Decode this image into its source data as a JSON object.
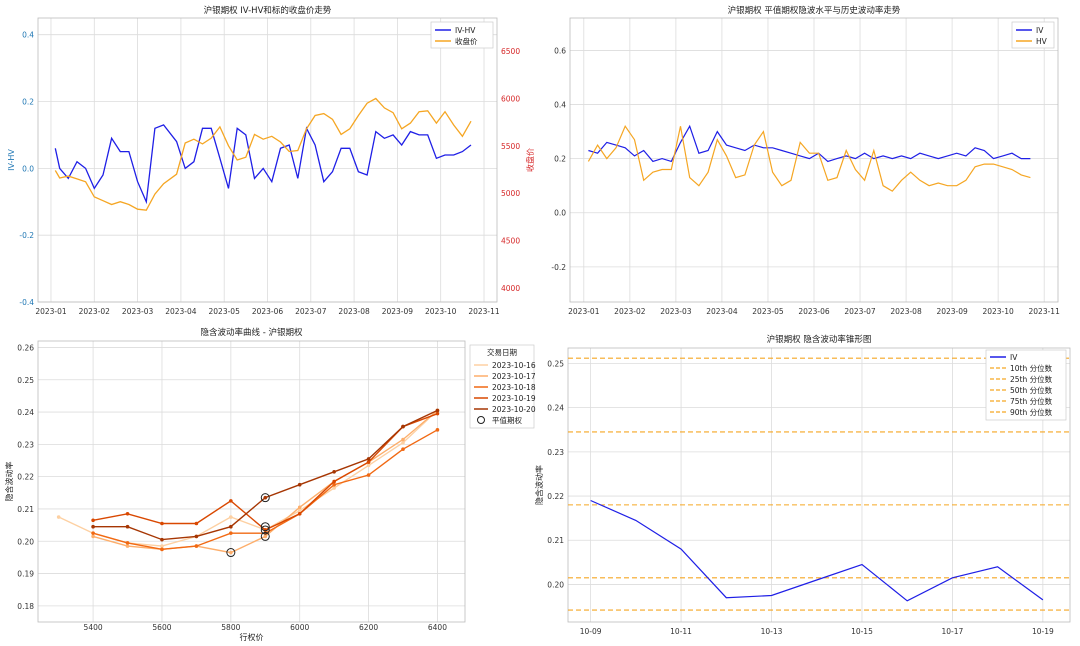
{
  "colors": {
    "iv": "#1f1fe6",
    "hv": "#f5a623",
    "close": "#f5a623",
    "red": "#d62728",
    "blue": "#1f77b4",
    "pct": "#f5a623"
  },
  "chart_data": [
    {
      "id": "c1",
      "type": "line",
      "title": "沪银期权 IV-HV和标的收盘价走势",
      "ylabel": "IV-HV",
      "y2label": "收盘价",
      "ylim": [
        -0.4,
        0.45
      ],
      "y2lim": [
        3850,
        6850
      ],
      "xlim": [
        -0.3,
        10.3
      ],
      "yticks": [
        -0.4,
        -0.2,
        0.0,
        0.2,
        0.4
      ],
      "y2ticks": [
        4000,
        4500,
        5000,
        5500,
        6000,
        6500
      ],
      "xticks": [
        "2023-01",
        "2023-02",
        "2023-03",
        "2023-04",
        "2023-05",
        "2023-06",
        "2023-07",
        "2023-08",
        "2023-09",
        "2023-10",
        "2023-11"
      ],
      "legend": "top-right",
      "series": [
        {
          "name": "IV-HV",
          "axis": "left",
          "x": [
            0.1,
            0.2,
            0.4,
            0.6,
            0.8,
            1.0,
            1.2,
            1.4,
            1.6,
            1.8,
            2.0,
            2.2,
            2.4,
            2.6,
            2.9,
            3.1,
            3.3,
            3.5,
            3.7,
            3.9,
            4.1,
            4.3,
            4.5,
            4.7,
            4.9,
            5.1,
            5.3,
            5.5,
            5.7,
            5.9,
            6.1,
            6.3,
            6.5,
            6.7,
            6.9,
            7.1,
            7.3,
            7.5,
            7.7,
            7.9,
            8.1,
            8.3,
            8.5,
            8.7,
            8.9,
            9.1,
            9.3,
            9.5,
            9.7
          ],
          "values": [
            0.06,
            0.0,
            -0.03,
            0.02,
            0.0,
            -0.06,
            -0.02,
            0.09,
            0.05,
            0.05,
            -0.04,
            -0.1,
            0.12,
            0.13,
            0.08,
            0.0,
            0.02,
            0.12,
            0.12,
            0.03,
            -0.06,
            0.12,
            0.1,
            -0.03,
            0.0,
            -0.04,
            0.06,
            0.07,
            -0.03,
            0.12,
            0.07,
            -0.04,
            -0.01,
            0.06,
            0.06,
            -0.01,
            -0.02,
            0.11,
            0.09,
            0.1,
            0.07,
            0.11,
            0.1,
            0.1,
            0.03,
            0.04,
            0.04,
            0.05,
            0.07
          ]
        },
        {
          "name": "收盘价",
          "axis": "right",
          "x": [
            0.1,
            0.2,
            0.4,
            0.6,
            0.8,
            1.0,
            1.2,
            1.4,
            1.6,
            1.8,
            2.0,
            2.2,
            2.4,
            2.6,
            2.9,
            3.1,
            3.3,
            3.5,
            3.7,
            3.9,
            4.1,
            4.3,
            4.5,
            4.7,
            4.9,
            5.1,
            5.3,
            5.5,
            5.7,
            5.9,
            6.1,
            6.3,
            6.5,
            6.7,
            6.9,
            7.1,
            7.3,
            7.5,
            7.7,
            7.9,
            8.1,
            8.3,
            8.5,
            8.7,
            8.9,
            9.1,
            9.3,
            9.5,
            9.7
          ],
          "values": [
            5240,
            5160,
            5180,
            5150,
            5120,
            4960,
            4920,
            4880,
            4910,
            4880,
            4830,
            4820,
            4990,
            5100,
            5200,
            5530,
            5570,
            5520,
            5580,
            5700,
            5500,
            5350,
            5380,
            5620,
            5570,
            5600,
            5540,
            5440,
            5450,
            5680,
            5820,
            5840,
            5780,
            5620,
            5680,
            5820,
            5950,
            6000,
            5900,
            5850,
            5680,
            5740,
            5860,
            5870,
            5740,
            5860,
            5720,
            5600,
            5760
          ]
        }
      ]
    },
    {
      "id": "c2",
      "type": "line",
      "title": "沪银期权 平值期权隐波水平与历史波动率走势",
      "ylim": [
        -0.33,
        0.72
      ],
      "xlim": [
        -0.3,
        10.3
      ],
      "yticks": [
        -0.2,
        0.0,
        0.2,
        0.4,
        0.6
      ],
      "xticks": [
        "2023-01",
        "2023-02",
        "2023-03",
        "2023-04",
        "2023-05",
        "2023-06",
        "2023-07",
        "2023-08",
        "2023-09",
        "2023-10",
        "2023-11"
      ],
      "legend": "top-right",
      "series": [
        {
          "name": "IV",
          "x": [
            0.1,
            0.3,
            0.5,
            0.7,
            0.9,
            1.1,
            1.3,
            1.5,
            1.7,
            1.9,
            2.1,
            2.3,
            2.5,
            2.7,
            2.9,
            3.1,
            3.3,
            3.5,
            3.7,
            3.9,
            4.1,
            4.3,
            4.5,
            4.7,
            4.9,
            5.1,
            5.3,
            5.5,
            5.7,
            5.9,
            6.1,
            6.3,
            6.5,
            6.7,
            6.9,
            7.1,
            7.3,
            7.5,
            7.7,
            7.9,
            8.1,
            8.3,
            8.5,
            8.7,
            8.9,
            9.1,
            9.3,
            9.5,
            9.7
          ],
          "values": [
            0.23,
            0.22,
            0.26,
            0.25,
            0.24,
            0.21,
            0.23,
            0.19,
            0.2,
            0.19,
            0.26,
            0.32,
            0.22,
            0.23,
            0.3,
            0.25,
            0.24,
            0.23,
            0.25,
            0.24,
            0.24,
            0.23,
            0.22,
            0.21,
            0.2,
            0.22,
            0.19,
            0.2,
            0.21,
            0.2,
            0.22,
            0.2,
            0.21,
            0.2,
            0.21,
            0.2,
            0.22,
            0.21,
            0.2,
            0.21,
            0.22,
            0.21,
            0.24,
            0.23,
            0.2,
            0.21,
            0.22,
            0.2,
            0.2
          ]
        },
        {
          "name": "HV",
          "x": [
            0.1,
            0.3,
            0.5,
            0.7,
            0.9,
            1.1,
            1.3,
            1.5,
            1.7,
            1.9,
            2.1,
            2.3,
            2.5,
            2.7,
            2.9,
            3.1,
            3.3,
            3.5,
            3.7,
            3.9,
            4.1,
            4.3,
            4.5,
            4.7,
            4.9,
            5.1,
            5.3,
            5.5,
            5.7,
            5.9,
            6.1,
            6.3,
            6.5,
            6.7,
            6.9,
            7.1,
            7.3,
            7.5,
            7.7,
            7.9,
            8.1,
            8.3,
            8.5,
            8.7,
            8.9,
            9.1,
            9.3,
            9.5,
            9.7
          ],
          "values": [
            0.19,
            0.25,
            0.2,
            0.24,
            0.32,
            0.27,
            0.12,
            0.15,
            0.16,
            0.16,
            0.32,
            0.13,
            0.1,
            0.15,
            0.27,
            0.21,
            0.13,
            0.14,
            0.25,
            0.3,
            0.15,
            0.1,
            0.12,
            0.26,
            0.22,
            0.22,
            0.12,
            0.13,
            0.23,
            0.16,
            0.12,
            0.23,
            0.1,
            0.08,
            0.12,
            0.15,
            0.12,
            0.1,
            0.11,
            0.1,
            0.1,
            0.12,
            0.17,
            0.18,
            0.18,
            0.17,
            0.16,
            0.14,
            0.13
          ]
        }
      ]
    },
    {
      "id": "c3",
      "type": "line",
      "title": "隐含波动率曲线 - 沪银期权",
      "xlabel": "行权价",
      "ylabel": "隐含波动率",
      "xlim": [
        5240,
        6480
      ],
      "ylim": [
        0.175,
        0.262
      ],
      "xticks": [
        5400,
        5600,
        5800,
        6000,
        6200,
        6400
      ],
      "yticks": [
        0.18,
        0.19,
        0.2,
        0.21,
        0.22,
        0.23,
        0.24,
        0.25,
        0.26
      ],
      "legend_title": "交易日期",
      "legend": "top-right",
      "atm_label": "平值期权",
      "series": [
        {
          "name": "2023-10-16",
          "color": "#fdd0a2",
          "x": [
            5300,
            5400,
            5500,
            5600,
            5700,
            5800,
            5900,
            6000,
            6100,
            6200,
            6300,
            6400
          ],
          "values": [
            0.2075,
            0.2025,
            0.1995,
            0.1985,
            0.2015,
            0.2075,
            0.2035,
            0.2095,
            0.2165,
            0.2235,
            0.2305,
            0.2405
          ]
        },
        {
          "name": "2023-10-17",
          "color": "#fdae6b",
          "x": [
            5400,
            5500,
            5600,
            5700,
            5800,
            5900,
            6000,
            6100,
            6200,
            6300,
            6400
          ],
          "values": [
            0.2015,
            0.1985,
            0.1975,
            0.1985,
            0.1965,
            0.2015,
            0.2105,
            0.2185,
            0.2245,
            0.2315,
            0.2405
          ]
        },
        {
          "name": "2023-10-18",
          "color": "#f16913",
          "x": [
            5400,
            5500,
            5600,
            5700,
            5800,
            5900,
            6000,
            6100,
            6200,
            6300,
            6400
          ],
          "values": [
            0.2025,
            0.1995,
            0.1975,
            0.1985,
            0.2025,
            0.2025,
            0.2085,
            0.2175,
            0.2205,
            0.2285,
            0.2345
          ]
        },
        {
          "name": "2023-10-19",
          "color": "#d94801",
          "x": [
            5400,
            5500,
            5600,
            5700,
            5800,
            5900,
            6000,
            6100,
            6200,
            6300,
            6400
          ],
          "values": [
            0.2065,
            0.2085,
            0.2055,
            0.2055,
            0.2125,
            0.2035,
            0.2085,
            0.2185,
            0.2245,
            0.2355,
            0.2395
          ]
        },
        {
          "name": "2023-10-20",
          "color": "#a63603",
          "x": [
            5400,
            5500,
            5600,
            5700,
            5800,
            5900,
            6000,
            6100,
            6200,
            6300,
            6400
          ],
          "values": [
            0.2045,
            0.2045,
            0.2005,
            0.2015,
            0.2045,
            0.2135,
            0.2175,
            0.2215,
            0.2255,
            0.2355,
            0.2405
          ]
        }
      ],
      "atm_points": [
        [
          5800,
          0.1965
        ],
        [
          5900,
          0.2135
        ],
        [
          5900,
          0.2045
        ],
        [
          5900,
          0.2015
        ],
        [
          5900,
          0.2035
        ]
      ]
    },
    {
      "id": "c4",
      "type": "line",
      "title": "沪银期权 隐含波动率锥形图",
      "ylabel": "隐含波动率",
      "xlim": [
        -0.5,
        10.6
      ],
      "ylim": [
        0.1915,
        0.2535
      ],
      "xticks": [
        "10-09",
        "10-11",
        "10-13",
        "10-15",
        "10-17",
        "10-19"
      ],
      "yticks": [
        0.2,
        0.21,
        0.22,
        0.23,
        0.24,
        0.25
      ],
      "legend": "top-right",
      "series": [
        {
          "name": "IV",
          "x": [
            0,
            1,
            2,
            3,
            4,
            5,
            6,
            7,
            8,
            9,
            10
          ],
          "values": [
            0.219,
            0.2145,
            0.208,
            0.197,
            0.1975,
            0.201,
            0.2045,
            0.1963,
            0.2015,
            0.204,
            0.1965
          ]
        }
      ],
      "percentiles": [
        {
          "name": "10th 分位数",
          "value": 0.1942
        },
        {
          "name": "25th 分位数",
          "value": 0.2015
        },
        {
          "name": "50th 分位数",
          "value": 0.218
        },
        {
          "name": "75th 分位数",
          "value": 0.2345
        },
        {
          "name": "90th 分位数",
          "value": 0.2512
        }
      ]
    }
  ]
}
